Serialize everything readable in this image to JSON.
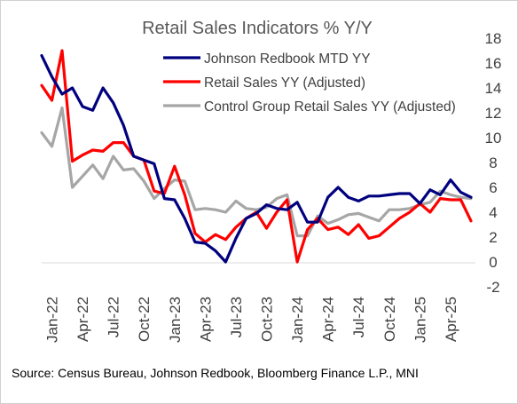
{
  "chart_data": {
    "type": "line",
    "title": "Retail Sales Indicators % Y/Y",
    "xlabel": "",
    "ylabel": "",
    "y_axis_side": "right",
    "ylim": [
      -2,
      18
    ],
    "y_ticks": [
      "18",
      "16",
      "14",
      "12",
      "10",
      "8",
      "6",
      "4",
      "2",
      "0",
      "-2"
    ],
    "x_tick_labels": [
      "Jan-22",
      "Apr-22",
      "Jul-22",
      "Oct-22",
      "Jan-23",
      "Apr-23",
      "Jul-23",
      "Oct-23",
      "Jan-24",
      "Apr-24",
      "Jul-24",
      "Oct-24",
      "Jan-25",
      "Apr-25"
    ],
    "grid": false,
    "legend_position": "top-right",
    "x": [
      "2021-12",
      "2022-01",
      "2022-02",
      "2022-03",
      "2022-04",
      "2022-05",
      "2022-06",
      "2022-07",
      "2022-08",
      "2022-09",
      "2022-10",
      "2022-11",
      "2022-12",
      "2023-01",
      "2023-02",
      "2023-03",
      "2023-04",
      "2023-05",
      "2023-06",
      "2023-07",
      "2023-08",
      "2023-09",
      "2023-10",
      "2023-11",
      "2023-12",
      "2024-01",
      "2024-02",
      "2024-03",
      "2024-04",
      "2024-05",
      "2024-06",
      "2024-07",
      "2024-08",
      "2024-09",
      "2024-10",
      "2024-11",
      "2024-12",
      "2025-01",
      "2025-02",
      "2025-03",
      "2025-04",
      "2025-05",
      "2025-06"
    ],
    "series": [
      {
        "name": "Johnson Redbook MTD YY",
        "color": "#00007f",
        "values": [
          16.6,
          14.9,
          13.5,
          14.0,
          12.5,
          12.2,
          14.0,
          12.8,
          11.0,
          8.5,
          8.2,
          7.9,
          5.1,
          5.0,
          3.5,
          1.6,
          1.5,
          0.9,
          0.0,
          1.9,
          3.5,
          3.9,
          4.6,
          4.3,
          4.2,
          4.8,
          3.2,
          3.2,
          5.2,
          6.0,
          5.2,
          4.9,
          5.3,
          5.3,
          5.4,
          5.5,
          5.5,
          4.7,
          5.8,
          5.4,
          6.6,
          5.6,
          5.2
        ]
      },
      {
        "name": "Retail Sales YY (Adjusted)",
        "color": "#ff0000",
        "values": [
          14.2,
          13.0,
          17.0,
          8.1,
          8.6,
          9.0,
          8.9,
          9.6,
          9.6,
          8.5,
          8.2,
          5.7,
          5.5,
          7.7,
          5.4,
          2.3,
          1.6,
          2.2,
          1.8,
          2.8,
          3.5,
          4.0,
          2.7,
          4.0,
          5.0,
          0.0,
          2.6,
          3.5,
          2.6,
          2.8,
          2.2,
          3.0,
          1.9,
          2.1,
          2.8,
          3.5,
          4.0,
          4.7,
          4.0,
          5.1,
          5.0,
          5.0,
          3.3
        ]
      },
      {
        "name": "Control Group Retail Sales YY (Adjusted)",
        "color": "#a6a6a6",
        "values": [
          10.4,
          9.3,
          12.4,
          6.0,
          6.9,
          7.8,
          6.7,
          8.5,
          7.4,
          7.5,
          6.5,
          5.1,
          5.9,
          6.6,
          6.5,
          4.2,
          4.3,
          4.2,
          4.0,
          4.9,
          4.3,
          4.2,
          4.4,
          5.1,
          5.4,
          2.1,
          2.1,
          3.7,
          3.1,
          3.4,
          3.8,
          3.9,
          3.6,
          3.3,
          4.2,
          4.2,
          4.3,
          4.6,
          4.8,
          5.7,
          5.4,
          5.2,
          5.1
        ]
      }
    ]
  },
  "footer": {
    "source": "Source: Census Bureau, Johnson Redbook, Bloomberg Finance L.P., MNI"
  }
}
